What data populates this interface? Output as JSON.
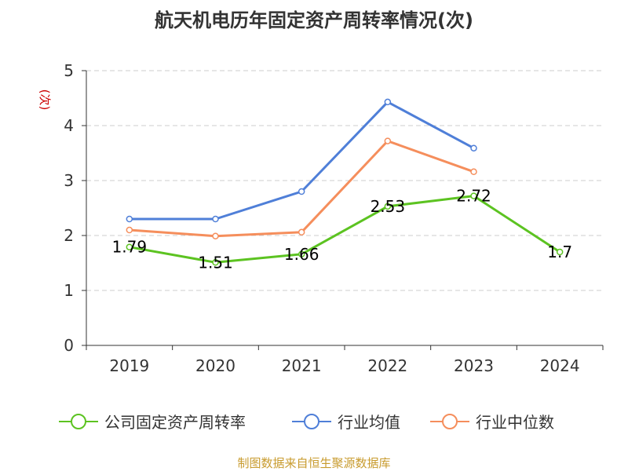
{
  "chart_data": {
    "type": "line",
    "title": "航天机电历年固定资产周转率情况(次)",
    "ylabel": "(次)",
    "xlabel": "",
    "categories": [
      "2019",
      "2020",
      "2021",
      "2022",
      "2023",
      "2024"
    ],
    "ylim": [
      0,
      5
    ],
    "yticks": [
      0,
      1,
      2,
      3,
      4,
      5
    ],
    "grid": true,
    "legend_position": "bottom",
    "series": [
      {
        "name": "公司固定资产周转率",
        "color": "#5cc321",
        "values": [
          1.79,
          1.51,
          1.66,
          2.53,
          2.72,
          1.7
        ],
        "labels": [
          "1.79",
          "1.51",
          "1.66",
          "2.53",
          "2.72",
          "1.7"
        ]
      },
      {
        "name": "行业均值",
        "color": "#4f7fd8",
        "values": [
          2.3,
          2.3,
          2.8,
          4.43,
          3.59,
          null
        ]
      },
      {
        "name": "行业中位数",
        "color": "#f58e5c",
        "values": [
          2.1,
          1.99,
          2.06,
          3.72,
          3.16,
          null
        ]
      }
    ]
  },
  "source": {
    "text": "制图数据来自恒生聚源数据库",
    "color": "#c89b2e"
  },
  "ylabel_color": "#cc0000"
}
